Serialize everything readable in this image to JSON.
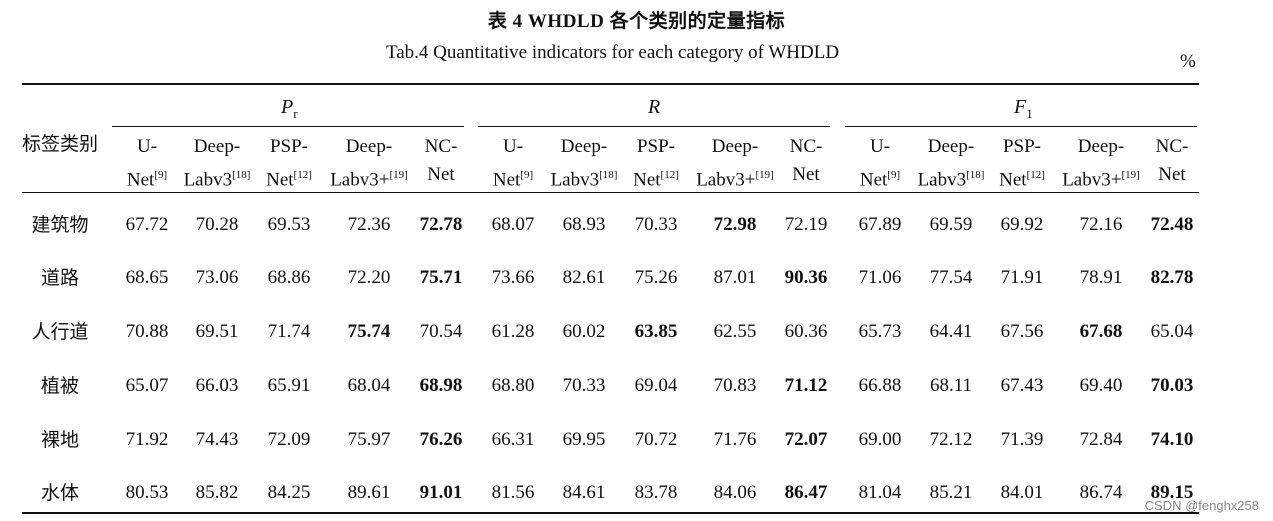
{
  "title_cn": "表 4   WHDLD 各个类别的定量指标",
  "title_en": "Tab.4    Quantitative indicators for each category of WHDLD",
  "unit": "%",
  "row_header": "标签类别",
  "groups": [
    {
      "symbol": "P",
      "sub": "r"
    },
    {
      "symbol": "R",
      "sub": ""
    },
    {
      "symbol": "F",
      "sub": "1"
    }
  ],
  "models": [
    {
      "line1": "U-",
      "line2": "Net",
      "ref": "[9]"
    },
    {
      "line1": "Deep-",
      "line2": "Labv3",
      "ref": "[18]"
    },
    {
      "line1": "PSP-",
      "line2": "Net",
      "ref": "[12]"
    },
    {
      "line1": "Deep-",
      "line2": "Labv3+",
      "ref": "[19]"
    },
    {
      "line1": "NC-",
      "line2": "Net",
      "ref": ""
    }
  ],
  "rows": [
    {
      "category": "建筑物",
      "values": [
        "67.72",
        "70.28",
        "69.53",
        "72.36",
        "72.78",
        "68.07",
        "68.93",
        "70.33",
        "72.98",
        "72.19",
        "67.89",
        "69.59",
        "69.92",
        "72.16",
        "72.48"
      ],
      "bold": [
        4,
        8,
        14
      ]
    },
    {
      "category": "道路",
      "values": [
        "68.65",
        "73.06",
        "68.86",
        "72.20",
        "75.71",
        "73.66",
        "82.61",
        "75.26",
        "87.01",
        "90.36",
        "71.06",
        "77.54",
        "71.91",
        "78.91",
        "82.78"
      ],
      "bold": [
        4,
        9,
        14
      ]
    },
    {
      "category": "人行道",
      "values": [
        "70.88",
        "69.51",
        "71.74",
        "75.74",
        "70.54",
        "61.28",
        "60.02",
        "63.85",
        "62.55",
        "60.36",
        "65.73",
        "64.41",
        "67.56",
        "67.68",
        "65.04"
      ],
      "bold": [
        3,
        7,
        13
      ]
    },
    {
      "category": "植被",
      "values": [
        "65.07",
        "66.03",
        "65.91",
        "68.04",
        "68.98",
        "68.80",
        "70.33",
        "69.04",
        "70.83",
        "71.12",
        "66.88",
        "68.11",
        "67.43",
        "69.40",
        "70.03"
      ],
      "bold": [
        4,
        9,
        14
      ]
    },
    {
      "category": "裸地",
      "values": [
        "71.92",
        "74.43",
        "72.09",
        "75.97",
        "76.26",
        "66.31",
        "69.95",
        "70.72",
        "71.76",
        "72.07",
        "69.00",
        "72.12",
        "71.39",
        "72.84",
        "74.10"
      ],
      "bold": [
        4,
        9,
        14
      ]
    },
    {
      "category": "水体",
      "values": [
        "80.53",
        "85.82",
        "84.25",
        "89.61",
        "91.01",
        "81.56",
        "84.61",
        "83.78",
        "84.06",
        "86.47",
        "81.04",
        "85.21",
        "84.01",
        "86.74",
        "89.15"
      ],
      "bold": [
        4,
        9,
        14
      ]
    }
  ],
  "watermark": "CSDN @fenghx258"
}
